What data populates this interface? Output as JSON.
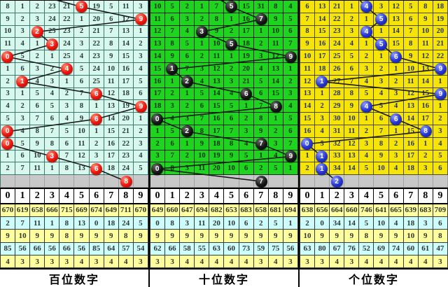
{
  "chart_data": {
    "type": "table",
    "description": "3D lottery digit trend chart: three panels of per-digit miss counts (rows are consecutive draws), drawn digit shown as a ball, balls joined by a trend line; a gray pending row, a 0-9 header row, five statistics rows and a panel title.",
    "style": {
      "pending_row_bg": "#c8c8c8",
      "line_color": "#1b1b1b",
      "stat_yellow": "#ffff9e",
      "stat_cyan": "#cdfefe",
      "header_bg": "#ffffff"
    },
    "digit_header": [
      "0",
      "1",
      "2",
      "3",
      "4",
      "5",
      "6",
      "7",
      "8",
      "9"
    ],
    "panels": [
      {
        "label": "百位数字",
        "theme": {
          "cell_bg": "#d8f8ee",
          "grid": "#3d7a72",
          "num": "#223a38",
          "ball_main": "#e8140c",
          "ball_hi": "#ff8a74",
          "ball_dark": "#a30a04",
          "ball_text": "#ffffff"
        },
        "entry_col": 3.6,
        "rows": [
          [
            "8",
            "1",
            "2",
            "23",
            "21",
            "5",
            "19",
            "5",
            "11",
            "3"
          ],
          [
            "9",
            "2",
            "3",
            "24",
            "22",
            "1",
            "20",
            "6",
            "12",
            "9"
          ],
          [
            "10",
            "3",
            "2",
            "25",
            "23",
            "2",
            "21",
            "7",
            "13",
            "1"
          ],
          [
            "11",
            "4",
            "1",
            "3",
            "24",
            "3",
            "22",
            "8",
            "14",
            "2"
          ],
          [
            "0",
            "5",
            "2",
            "1",
            "25",
            "4",
            "23",
            "9",
            "15",
            "3"
          ],
          [
            "1",
            "6",
            "3",
            "2",
            "4",
            "5",
            "24",
            "10",
            "16",
            "4"
          ],
          [
            "2",
            "1",
            "4",
            "3",
            "1",
            "6",
            "25",
            "11",
            "17",
            "5"
          ],
          [
            "3",
            "1",
            "5",
            "4",
            "2",
            "7",
            "6",
            "12",
            "18",
            "6"
          ],
          [
            "4",
            "2",
            "6",
            "5",
            "3",
            "8",
            "1",
            "13",
            "19",
            "9"
          ],
          [
            "5",
            "3",
            "7",
            "6",
            "4",
            "9",
            "6",
            "14",
            "20",
            "1"
          ],
          [
            "0",
            "4",
            "8",
            "7",
            "5",
            "10",
            "1",
            "15",
            "21",
            "2"
          ],
          [
            "0",
            "5",
            "9",
            "8",
            "6",
            "11",
            "2",
            "16",
            "22",
            "3"
          ],
          [
            "1",
            "6",
            "10",
            "3",
            "7",
            "12",
            "3",
            "17",
            "23",
            "4"
          ],
          [
            "2",
            "7",
            "11",
            "1",
            "8",
            "13",
            "6",
            "18",
            "24",
            "5"
          ]
        ],
        "ball_cols": [
          5,
          9,
          2,
          3,
          0,
          4,
          1,
          6,
          9,
          6,
          0,
          0,
          3,
          6
        ],
        "pending_ball_col": 8,
        "stats": [
          [
            "670",
            "619",
            "658",
            "666",
            "715",
            "669",
            "674",
            "649",
            "711",
            "670"
          ],
          [
            "2",
            "7",
            "11",
            "1",
            "8",
            "13",
            "0",
            "18",
            "24",
            "5"
          ],
          [
            "9",
            "10",
            "9",
            "9",
            "8",
            "9",
            "9",
            "9",
            "8",
            "9"
          ],
          [
            "85",
            "56",
            "66",
            "56",
            "66",
            "56",
            "85",
            "64",
            "57",
            "54"
          ],
          [
            "4",
            "3",
            "3",
            "3",
            "3",
            "4",
            "3",
            "4",
            "4",
            "3"
          ]
        ]
      },
      {
        "label": "十位数字",
        "theme": {
          "cell_bg": "#1ed41e",
          "grid": "#0d230d",
          "num": "#0c2d0c",
          "ball_main": "#151515",
          "ball_hi": "#6a6a6a",
          "ball_dark": "#000000",
          "ball_text": "#ffffff"
        },
        "entry_col": 4.7,
        "rows": [
          [
            "10",
            "5",
            "2",
            "1",
            "7",
            "5",
            "15",
            "31",
            "8",
            "4"
          ],
          [
            "11",
            "6",
            "3",
            "2",
            "8",
            "1",
            "16",
            "7",
            "9",
            "5"
          ],
          [
            "12",
            "7",
            "4",
            "3",
            "9",
            "2",
            "17",
            "1",
            "10",
            "6"
          ],
          [
            "13",
            "8",
            "5",
            "1",
            "10",
            "5",
            "18",
            "2",
            "11",
            "7"
          ],
          [
            "14",
            "9",
            "6",
            "2",
            "11",
            "1",
            "19",
            "3",
            "12",
            "9"
          ],
          [
            "15",
            "1",
            "7",
            "3",
            "12",
            "2",
            "20",
            "4",
            "13",
            "1"
          ],
          [
            "16",
            "1",
            "2",
            "4",
            "13",
            "3",
            "21",
            "5",
            "14",
            "2"
          ],
          [
            "17",
            "2",
            "1",
            "5",
            "14",
            "4",
            "6",
            "6",
            "15",
            "3"
          ],
          [
            "18",
            "3",
            "2",
            "6",
            "15",
            "5",
            "1",
            "7",
            "8",
            "4"
          ],
          [
            "0",
            "4",
            "3",
            "7",
            "16",
            "6",
            "2",
            "8",
            "1",
            "5"
          ],
          [
            "1",
            "5",
            "2",
            "8",
            "17",
            "7",
            "3",
            "9",
            "2",
            "6"
          ],
          [
            "2",
            "6",
            "1",
            "9",
            "18",
            "8",
            "4",
            "7",
            "3",
            "7"
          ],
          [
            "3",
            "7",
            "2",
            "10",
            "19",
            "9",
            "5",
            "1",
            "4",
            "9"
          ],
          [
            "0",
            "8",
            "3",
            "11",
            "20",
            "10",
            "6",
            "2",
            "5",
            "1"
          ]
        ],
        "ball_cols": [
          5,
          7,
          3,
          5,
          9,
          1,
          2,
          6,
          8,
          0,
          2,
          7,
          9,
          0
        ],
        "pending_ball_col": 7,
        "stats": [
          [
            "649",
            "660",
            "647",
            "694",
            "682",
            "653",
            "683",
            "658",
            "681",
            "694"
          ],
          [
            "0",
            "8",
            "3",
            "11",
            "20",
            "10",
            "6",
            "2",
            "5",
            "1"
          ],
          [
            "9",
            "9",
            "9",
            "9",
            "9",
            "9",
            "9",
            "9",
            "9",
            "9"
          ],
          [
            "62",
            "66",
            "58",
            "55",
            "63",
            "60",
            "73",
            "59",
            "75",
            "56"
          ],
          [
            "3",
            "3",
            "4",
            "4",
            "4",
            "4",
            "4",
            "3",
            "4",
            "3"
          ]
        ]
      },
      {
        "label": "个位数字",
        "theme": {
          "cell_bg": "#f5e405",
          "grid": "#4a4a22",
          "num": "#233069",
          "ball_main": "#2433cf",
          "ball_hi": "#8b9bff",
          "ball_dark": "#101d86",
          "ball_text": "#ffffff"
        },
        "entry_col": 4.0,
        "rows": [
          [
            "6",
            "13",
            "21",
            "1",
            "4",
            "3",
            "12",
            "5",
            "8",
            "18"
          ],
          [
            "7",
            "14",
            "22",
            "2",
            "1",
            "5",
            "13",
            "6",
            "9",
            "19"
          ],
          [
            "8",
            "15",
            "23",
            "3",
            "4",
            "1",
            "14",
            "7",
            "10",
            "20"
          ],
          [
            "9",
            "16",
            "24",
            "4",
            "1",
            "5",
            "15",
            "8",
            "11",
            "21"
          ],
          [
            "10",
            "17",
            "25",
            "5",
            "2",
            "1",
            "6",
            "9",
            "12",
            "22"
          ],
          [
            "11",
            "18",
            "26",
            "6",
            "3",
            "2",
            "1",
            "10",
            "13",
            "9"
          ],
          [
            "12",
            "1",
            "27",
            "7",
            "4",
            "3",
            "2",
            "11",
            "14",
            "1"
          ],
          [
            "13",
            "1",
            "28",
            "8",
            "5",
            "4",
            "3",
            "12",
            "15",
            "9"
          ],
          [
            "14",
            "2",
            "29",
            "9",
            "4",
            "5",
            "4",
            "13",
            "16",
            "1"
          ],
          [
            "15",
            "3",
            "30",
            "10",
            "1",
            "6",
            "6",
            "14",
            "17",
            "2"
          ],
          [
            "16",
            "4",
            "31",
            "11",
            "2",
            "7",
            "1",
            "15",
            "8",
            "3"
          ],
          [
            "0",
            "5",
            "32",
            "12",
            "3",
            "8",
            "2",
            "16",
            "1",
            "4"
          ],
          [
            "1",
            "1",
            "33",
            "13",
            "4",
            "9",
            "3",
            "17",
            "2",
            "5"
          ],
          [
            "2",
            "1",
            "34",
            "14",
            "5",
            "10",
            "4",
            "18",
            "3",
            "6"
          ]
        ],
        "ball_cols": [
          4,
          5,
          4,
          5,
          6,
          9,
          1,
          9,
          4,
          6,
          8,
          0,
          1,
          1
        ],
        "pending_ball_col": 2,
        "stats": [
          [
            "638",
            "656",
            "664",
            "660",
            "746",
            "641",
            "665",
            "639",
            "683",
            "709"
          ],
          [
            "2",
            "0",
            "34",
            "14",
            "5",
            "10",
            "4",
            "18",
            "3",
            "6"
          ],
          [
            "10",
            "9",
            "9",
            "9",
            "8",
            "9",
            "9",
            "10",
            "9",
            "8"
          ],
          [
            "63",
            "80",
            "67",
            "76",
            "52",
            "69",
            "74",
            "60",
            "61",
            "47"
          ],
          [
            "3",
            "3",
            "4",
            "3",
            "4",
            "4",
            "4",
            "4",
            "4",
            "3"
          ]
        ]
      }
    ]
  }
}
